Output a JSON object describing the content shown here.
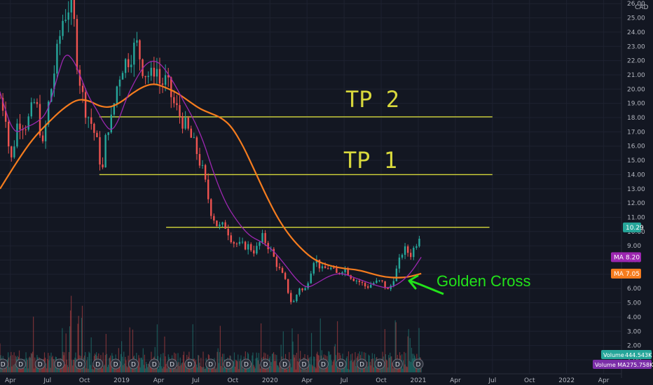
{
  "chart_data": {
    "type": "line",
    "currency": "CAD",
    "yaxis": {
      "ticks": [
        "1.00",
        "2.00",
        "3.00",
        "4.00",
        "5.00",
        "6.00",
        "7.00",
        "8.00",
        "9.00",
        "10.00",
        "11.00",
        "12.00",
        "13.00",
        "14.00",
        "15.00",
        "16.00",
        "17.00",
        "18.00",
        "19.00",
        "20.00",
        "21.00",
        "22.00",
        "23.00",
        "24.00",
        "25.00",
        "26.00"
      ],
      "ylim": [
        1,
        26
      ]
    },
    "xaxis": {
      "ticks": [
        "Apr",
        "Jul",
        "Oct",
        "2019",
        "Apr",
        "Jul",
        "Oct",
        "2020",
        "Apr",
        "Jul",
        "Oct",
        "2021",
        "Apr",
        "Jul",
        "Oct",
        "2022",
        "Apr"
      ],
      "tick_t": [
        2018.25,
        2018.5,
        2018.75,
        2019.0,
        2019.25,
        2019.5,
        2019.75,
        2020.0,
        2020.25,
        2020.5,
        2020.75,
        2021.0,
        2021.25,
        2021.5,
        2021.75,
        2022.0,
        2022.25
      ],
      "xlim": [
        2018.18,
        2022.37
      ]
    },
    "price": {
      "t": [
        2018.18,
        2018.22,
        2018.25,
        2018.3,
        2018.36,
        2018.42,
        2018.47,
        2018.5,
        2018.55,
        2018.6,
        2018.65,
        2018.68,
        2018.7,
        2018.73,
        2018.76,
        2018.8,
        2018.83,
        2018.87,
        2018.9,
        2018.93,
        2018.97,
        2019.0,
        2019.05,
        2019.1,
        2019.15,
        2019.2,
        2019.23,
        2019.26,
        2019.3,
        2019.35,
        2019.4,
        2019.45,
        2019.5,
        2019.55,
        2019.6,
        2019.65,
        2019.7,
        2019.75,
        2019.8,
        2019.85,
        2019.9,
        2019.95,
        2020.0,
        2020.05,
        2020.1,
        2020.15,
        2020.2,
        2020.23,
        2020.26,
        2020.3,
        2020.35,
        2020.4,
        2020.45,
        2020.5,
        2020.55,
        2020.6,
        2020.65,
        2020.7,
        2020.75,
        2020.8,
        2020.85,
        2020.9,
        2020.95,
        2021.0,
        2021.02
      ],
      "close": [
        19.4,
        18.2,
        14.6,
        17.8,
        17.5,
        19.3,
        15.8,
        18.5,
        21.5,
        24.8,
        26.0,
        24.5,
        22.0,
        19.8,
        18.5,
        17.5,
        16.4,
        14.1,
        17.3,
        17.8,
        20.3,
        21.6,
        22.2,
        23.2,
        21.2,
        20.9,
        21.8,
        20.3,
        20.6,
        19.0,
        18.0,
        17.0,
        15.8,
        14.1,
        11.5,
        10.3,
        10.4,
        9.3,
        9.0,
        9.0,
        8.6,
        9.6,
        8.8,
        7.6,
        6.6,
        4.8,
        6.1,
        5.7,
        6.7,
        8.2,
        7.3,
        7.5,
        7.0,
        7.5,
        6.8,
        6.5,
        6.1,
        6.4,
        6.5,
        5.8,
        7.2,
        8.8,
        8.4,
        9.5,
        10.3
      ]
    },
    "ma_fast": {
      "name": "MA",
      "last": "8.20",
      "color": "#9c27b0",
      "t": [
        2018.18,
        2018.27,
        2018.35,
        2018.42,
        2018.5,
        2018.57,
        2018.62,
        2018.68,
        2018.73,
        2018.78,
        2018.83,
        2018.88,
        2018.93,
        2018.98,
        2019.03,
        2019.1,
        2019.17,
        2019.24,
        2019.3,
        2019.36,
        2019.42,
        2019.48,
        2019.55,
        2019.62,
        2019.7,
        2019.78,
        2019.86,
        2019.94,
        2020.02,
        2020.1,
        2020.18,
        2020.25,
        2020.32,
        2020.4,
        2020.48,
        2020.56,
        2020.64,
        2020.72,
        2020.8,
        2020.88,
        2020.95,
        2021.02
      ],
      "values": [
        19.8,
        16.8,
        17.3,
        17.6,
        18.3,
        21.0,
        22.6,
        22.0,
        20.7,
        19.4,
        18.6,
        17.6,
        17.0,
        17.8,
        19.3,
        20.8,
        21.9,
        22.0,
        21.3,
        20.3,
        19.1,
        18.0,
        16.4,
        14.1,
        12.0,
        10.7,
        9.7,
        9.3,
        8.7,
        7.7,
        6.6,
        6.0,
        6.4,
        6.9,
        7.1,
        6.8,
        6.5,
        6.2,
        6.0,
        6.4,
        7.1,
        8.2
      ]
    },
    "ma_slow": {
      "name": "MA",
      "last": "7.05",
      "color": "#f57c1e",
      "t": [
        2018.18,
        2018.3,
        2018.4,
        2018.5,
        2018.6,
        2018.7,
        2018.78,
        2018.85,
        2018.92,
        2019.0,
        2019.07,
        2019.15,
        2019.22,
        2019.3,
        2019.38,
        2019.46,
        2019.53,
        2019.6,
        2019.67,
        2019.74,
        2019.82,
        2019.9,
        2019.98,
        2020.06,
        2020.14,
        2020.22,
        2020.3,
        2020.4,
        2020.5,
        2020.6,
        2020.7,
        2020.78,
        2020.86,
        2020.93,
        2021.02
      ],
      "values": [
        13.0,
        15.0,
        16.5,
        17.6,
        18.6,
        19.3,
        19.2,
        18.8,
        18.7,
        19.1,
        19.7,
        20.2,
        20.4,
        20.1,
        19.7,
        19.1,
        18.6,
        18.3,
        18.0,
        17.4,
        16.0,
        14.2,
        12.4,
        10.8,
        9.6,
        8.7,
        8.0,
        7.6,
        7.4,
        7.3,
        7.0,
        6.8,
        6.75,
        6.8,
        7.05
      ]
    },
    "current_price": "10.29",
    "volume": {
      "label": "Volume",
      "value": "444.543K"
    },
    "volume_ma": {
      "label": "Volume MA",
      "value": "275.758K"
    },
    "dividend_marker": "D",
    "dividend_t": [
      2018.2,
      2018.32,
      2018.45,
      2018.58,
      2018.72,
      2018.84,
      2018.96,
      2019.08,
      2019.22,
      2019.34,
      2019.46,
      2019.6,
      2019.72,
      2019.84,
      2019.97,
      2020.1,
      2020.23,
      2020.36,
      2020.48,
      2020.62,
      2020.74,
      2020.86,
      2021.0
    ],
    "levels": [
      {
        "price": 18.05,
        "t_start": 2018.85,
        "t_end": 2021.5
      },
      {
        "price": 14.0,
        "t_start": 2018.85,
        "t_end": 2021.5
      },
      {
        "price": 10.3,
        "t_start": 2019.3,
        "t_end": 2021.48
      }
    ],
    "annotations": {
      "tp2": "TP 2",
      "tp1": "TP 1",
      "golden_cross": "Golden Cross"
    },
    "colors": {
      "background": "#131722",
      "grid": "#1e2230",
      "level_line": "#d4d73a",
      "candle_up": "#26a69a",
      "candle_down": "#ef5350",
      "annotation_green": "#22e31a",
      "price_label": "#26a69a"
    }
  }
}
